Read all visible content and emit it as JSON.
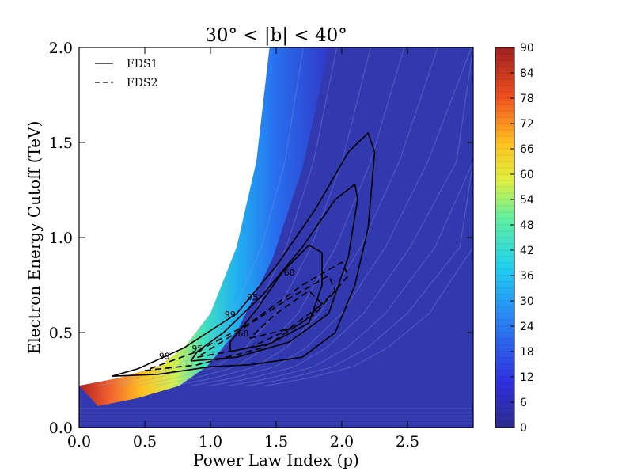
{
  "chart_data": {
    "type": "heatmap",
    "title": "30° < |b| < 40°",
    "xlabel": "Power Law Index (p)",
    "ylabel": "Electron Energy Cutoff (TeV)",
    "xlim": [
      0.0,
      3.0
    ],
    "ylim": [
      0.0,
      2.0
    ],
    "x_ticks": [
      "0.0",
      "0.5",
      "1.0",
      "1.5",
      "2.0",
      "2.5"
    ],
    "x_tick_values": [
      0.0,
      0.5,
      1.0,
      1.5,
      2.0,
      2.5
    ],
    "y_ticks": [
      "0.0",
      "0.5",
      "1.0",
      "1.5",
      "2.0"
    ],
    "y_tick_values": [
      0.0,
      0.5,
      1.0,
      1.5,
      2.0
    ],
    "colorbar": {
      "min": 0,
      "max": 90,
      "ticks": [
        "0",
        "6",
        "12",
        "18",
        "24",
        "30",
        "36",
        "42",
        "48",
        "54",
        "60",
        "66",
        "72",
        "78",
        "84",
        "90"
      ],
      "tick_values": [
        0,
        6,
        12,
        18,
        24,
        30,
        36,
        42,
        48,
        54,
        60,
        66,
        72,
        78,
        84,
        90
      ],
      "colormap": "jet"
    },
    "legend": {
      "position": "top-left",
      "entries": [
        {
          "label": "FDS1",
          "style": "solid"
        },
        {
          "label": "FDS2",
          "style": "dashed"
        }
      ]
    },
    "filled_region": {
      "description": "colored band boundary (left edge of valid region)",
      "boundary": [
        [
          0.0,
          0.22
        ],
        [
          0.3,
          0.26
        ],
        [
          0.6,
          0.32
        ],
        [
          0.8,
          0.42
        ],
        [
          1.0,
          0.6
        ],
        [
          1.2,
          0.95
        ],
        [
          1.35,
          1.4
        ],
        [
          1.45,
          2.0
        ]
      ]
    },
    "contours": [
      {
        "set": "FDS1",
        "level": "99",
        "points": [
          [
            0.25,
            0.27
          ],
          [
            0.6,
            0.28
          ],
          [
            1.0,
            0.32
          ],
          [
            1.3,
            0.33
          ],
          [
            1.7,
            0.37
          ],
          [
            1.95,
            0.5
          ],
          [
            2.1,
            0.75
          ],
          [
            2.2,
            1.05
          ],
          [
            2.25,
            1.45
          ],
          [
            2.2,
            1.55
          ],
          [
            2.05,
            1.45
          ],
          [
            1.8,
            1.15
          ],
          [
            1.5,
            0.85
          ],
          [
            1.2,
            0.6
          ],
          [
            0.8,
            0.42
          ],
          [
            0.45,
            0.31
          ],
          [
            0.25,
            0.27
          ]
        ]
      },
      {
        "set": "FDS1",
        "level": "95",
        "points": [
          [
            0.85,
            0.35
          ],
          [
            1.2,
            0.37
          ],
          [
            1.6,
            0.45
          ],
          [
            1.9,
            0.6
          ],
          [
            2.05,
            0.9
          ],
          [
            2.12,
            1.2
          ],
          [
            2.1,
            1.28
          ],
          [
            1.95,
            1.2
          ],
          [
            1.7,
            0.95
          ],
          [
            1.4,
            0.7
          ],
          [
            1.1,
            0.5
          ],
          [
            0.9,
            0.4
          ],
          [
            0.85,
            0.35
          ]
        ]
      },
      {
        "set": "FDS1",
        "level": "68",
        "points": [
          [
            1.15,
            0.4
          ],
          [
            1.45,
            0.44
          ],
          [
            1.75,
            0.55
          ],
          [
            1.85,
            0.75
          ],
          [
            1.85,
            0.92
          ],
          [
            1.75,
            0.96
          ],
          [
            1.55,
            0.82
          ],
          [
            1.35,
            0.62
          ],
          [
            1.15,
            0.45
          ],
          [
            1.15,
            0.4
          ]
        ]
      },
      {
        "set": "FDS2",
        "level": "99",
        "points": [
          [
            0.5,
            0.3
          ],
          [
            0.9,
            0.33
          ],
          [
            1.4,
            0.42
          ],
          [
            1.8,
            0.6
          ],
          [
            2.05,
            0.8
          ],
          [
            2.0,
            0.87
          ],
          [
            1.7,
            0.75
          ],
          [
            1.3,
            0.55
          ],
          [
            0.9,
            0.4
          ],
          [
            0.5,
            0.3
          ]
        ]
      },
      {
        "set": "FDS2",
        "level": "95",
        "points": [
          [
            0.9,
            0.37
          ],
          [
            1.3,
            0.42
          ],
          [
            1.7,
            0.55
          ],
          [
            1.95,
            0.72
          ],
          [
            1.9,
            0.8
          ],
          [
            1.6,
            0.68
          ],
          [
            1.2,
            0.5
          ],
          [
            0.9,
            0.37
          ]
        ]
      },
      {
        "set": "FDS2",
        "level": "68",
        "points": [
          [
            1.3,
            0.47
          ],
          [
            1.6,
            0.52
          ],
          [
            1.85,
            0.65
          ],
          [
            1.75,
            0.72
          ],
          [
            1.5,
            0.6
          ],
          [
            1.3,
            0.47
          ]
        ]
      }
    ],
    "contour_labels": [
      {
        "text": "99",
        "x": 0.65,
        "y": 0.36
      },
      {
        "text": "95",
        "x": 0.9,
        "y": 0.4
      },
      {
        "text": "68",
        "x": 1.25,
        "y": 0.48
      },
      {
        "text": "99",
        "x": 1.15,
        "y": 0.58
      },
      {
        "text": "95",
        "x": 1.32,
        "y": 0.67
      },
      {
        "text": "68",
        "x": 1.6,
        "y": 0.8
      }
    ]
  }
}
